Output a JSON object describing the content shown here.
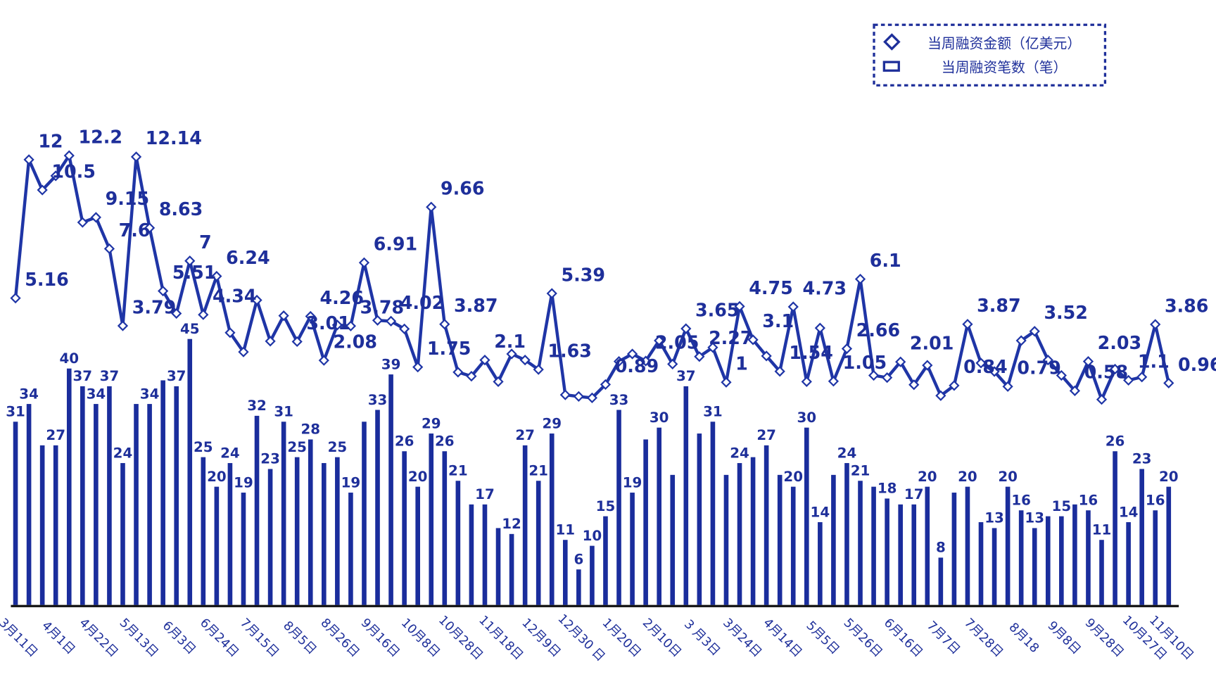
{
  "chart_data": {
    "type": "bar-line",
    "categories": [
      "3月11日",
      null,
      null,
      "4月1日",
      null,
      null,
      "4月22日",
      null,
      null,
      "5月13日",
      null,
      null,
      "6月3日",
      null,
      null,
      "6月24日",
      null,
      null,
      "7月15日",
      null,
      null,
      "8月5日",
      null,
      null,
      "8月26日",
      null,
      null,
      "9月16日",
      null,
      null,
      "10月8日",
      null,
      null,
      "10月28日",
      null,
      null,
      "11月18日",
      null,
      null,
      "12月9日",
      null,
      null,
      "12月30 日",
      null,
      null,
      "1月20日",
      null,
      null,
      "2月10日",
      null,
      null,
      "3 月3日",
      null,
      null,
      "3月24日",
      null,
      null,
      "4月14日",
      null,
      null,
      "5月5日",
      null,
      null,
      "5月26日",
      null,
      null,
      "6月16日",
      null,
      null,
      "7月7日",
      null,
      null,
      "7月28日",
      null,
      null,
      "8月18",
      null,
      null,
      "9月8日",
      null,
      null,
      "9月28日",
      null,
      null,
      "10月27日",
      null,
      "11月10日"
    ],
    "series": [
      {
        "name": "当周融资笔数（笔）",
        "type": "bar",
        "color": "#1a2d9c",
        "values": [
          31,
          34,
          27,
          27,
          40,
          37,
          34,
          37,
          24,
          34,
          34,
          38,
          37,
          45,
          25,
          20,
          24,
          19,
          32,
          23,
          31,
          25,
          28,
          24,
          25,
          19,
          31,
          33,
          39,
          26,
          20,
          29,
          26,
          21,
          17,
          17,
          13,
          12,
          27,
          21,
          29,
          11,
          6,
          10,
          15,
          33,
          19,
          28,
          30,
          22,
          37,
          29,
          31,
          22,
          24,
          25,
          27,
          22,
          20,
          30,
          14,
          22,
          24,
          21,
          20,
          18,
          17,
          17,
          20,
          8,
          19,
          20,
          14,
          13,
          20,
          16,
          13,
          15,
          15,
          17,
          16,
          11,
          26,
          14,
          23,
          16,
          20
        ],
        "value_labels": [
          "31",
          "34",
          null,
          "27",
          "40",
          "37",
          "34",
          "37",
          "24",
          null,
          "34",
          null,
          "37",
          "45",
          "25",
          "20",
          "24",
          "19",
          "32",
          "23",
          "31",
          "25",
          "28",
          null,
          "25",
          "19",
          null,
          "33",
          "39",
          "26",
          "20",
          "29",
          "26",
          "21",
          null,
          "17",
          null,
          "12",
          "27",
          "21",
          "29",
          "11",
          "6",
          "10",
          "15",
          "33",
          "19",
          null,
          "30",
          null,
          "37",
          null,
          "31",
          null,
          "24",
          null,
          "27",
          null,
          "20",
          "30",
          "14",
          null,
          "24",
          "21",
          null,
          "18",
          null,
          "17",
          "20",
          "8",
          null,
          "20",
          null,
          "13",
          "20",
          "16",
          "13",
          null,
          "15",
          null,
          "16",
          "11",
          "26",
          "14",
          "23",
          "16",
          "20"
        ]
      },
      {
        "name": "当周融资金额（亿美元）",
        "type": "line",
        "axis": "y2",
        "color": "#1f35a6",
        "values": [
          5.16,
          12,
          10.5,
          11.2,
          12.2,
          8.9,
          9.15,
          7.6,
          3.79,
          12.14,
          8.63,
          5.51,
          4.4,
          7,
          4.34,
          6.24,
          3.45,
          2.5,
          5.06,
          3.03,
          4.29,
          3.01,
          4.26,
          2.08,
          3.83,
          3.78,
          6.91,
          4.06,
          4.02,
          3.64,
          1.75,
          9.66,
          3.87,
          1.5,
          1.3,
          2.1,
          1.03,
          2.4,
          2.1,
          1.63,
          5.39,
          0.38,
          0.3,
          0.23,
          0.89,
          2.03,
          2.4,
          2.05,
          3.06,
          1.9,
          3.65,
          2.27,
          2.72,
          1,
          4.75,
          3.1,
          2.3,
          1.54,
          4.73,
          1.03,
          3.68,
          1.05,
          2.66,
          6.1,
          1.34,
          1.23,
          2.01,
          0.88,
          1.84,
          0.34,
          0.84,
          3.87,
          1.95,
          1.53,
          0.79,
          3.06,
          3.52,
          2.1,
          1.34,
          0.58,
          2.03,
          0.15,
          1.65,
          1.1,
          1.26,
          3.86,
          0.96
        ],
        "value_labels": [
          "5.16",
          "12",
          "10.5",
          null,
          "12.2",
          null,
          "9.15",
          "7.6",
          "3.79",
          "12.14",
          "8.63",
          "5.51",
          null,
          "7",
          "4.34",
          "6.24",
          null,
          null,
          null,
          null,
          null,
          "3.01",
          "4.26",
          "2.08",
          null,
          "3.78",
          "6.91",
          null,
          "4.02",
          null,
          "1.75",
          "9.66",
          "3.87",
          null,
          null,
          "2.1",
          null,
          null,
          null,
          "1.63",
          "5.39",
          null,
          null,
          null,
          "0.89",
          null,
          null,
          "2.05",
          null,
          null,
          "3.65",
          "2.27",
          null,
          "1",
          "4.75",
          "3.1",
          null,
          "1.54",
          "4.73",
          null,
          null,
          "1.05",
          "2.66",
          "6.1",
          null,
          null,
          "2.01",
          null,
          null,
          null,
          "0.84",
          "3.87",
          null,
          null,
          "0.79",
          null,
          "3.52",
          null,
          null,
          "0.58",
          "2.03",
          null,
          null,
          "1.1",
          null,
          "3.86",
          "0.96"
        ]
      }
    ],
    "ylim": [
      0,
      100
    ],
    "y2lim": [
      -10,
      19.2
    ],
    "legend": "top-right"
  }
}
